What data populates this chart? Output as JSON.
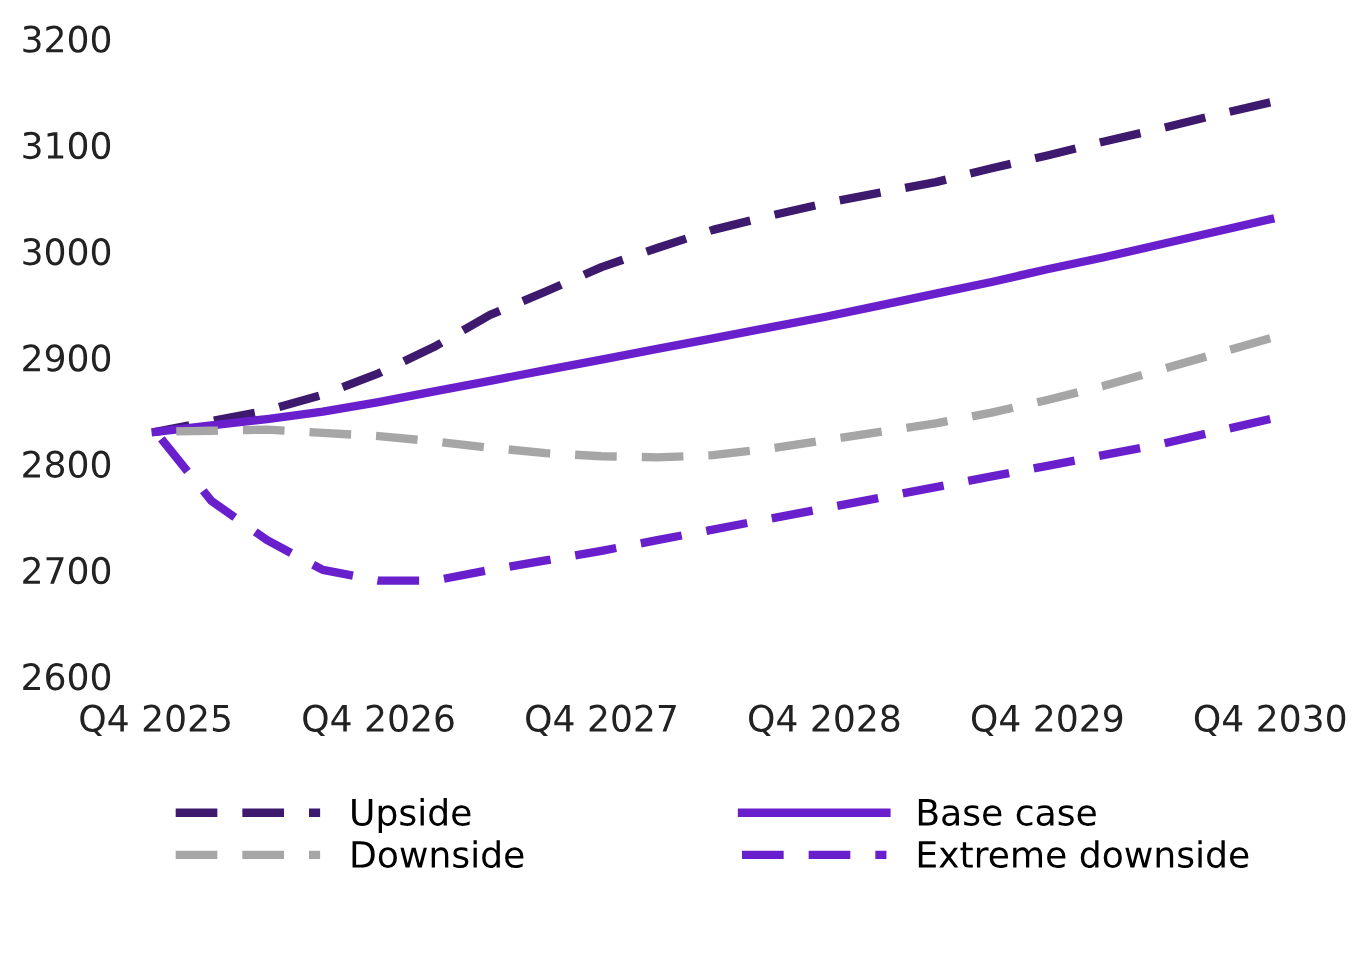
{
  "chart_data": {
    "type": "line",
    "categories": [
      "Q4 2025",
      null,
      null,
      null,
      "Q4 2026",
      null,
      null,
      null,
      "Q4 2027",
      null,
      null,
      null,
      "Q4 2028",
      null,
      null,
      null,
      "Q4 2029",
      null,
      null,
      null,
      "Q4 2030"
    ],
    "ylim": [
      2600,
      3200
    ],
    "yticks": [
      2600,
      2700,
      2800,
      2900,
      3000,
      3100,
      3200
    ],
    "grid": false,
    "legend": "bottom",
    "marker": "none",
    "series": [
      {
        "name": "Upside",
        "color": "#3d1a6e",
        "line_style": "dashed",
        "values": [
          2830,
          2840,
          2850,
          2865,
          2885,
          2910,
          2940,
          2962,
          2985,
          3003,
          3020,
          3033,
          3045,
          3055,
          3065,
          3078,
          3090,
          3103,
          3115,
          3128,
          3140
        ]
      },
      {
        "name": "Base case",
        "color": "#6a1fcc",
        "line_style": "solid",
        "values": [
          2830,
          2836,
          2842,
          2849,
          2858,
          2868,
          2878,
          2888,
          2898,
          2908,
          2918,
          2928,
          2938,
          2949,
          2960,
          2971,
          2983,
          2994,
          3006,
          3018,
          3030
        ]
      },
      {
        "name": "Downside",
        "color": "#a6a6a6",
        "line_style": "dashed",
        "values": [
          2830,
          2831,
          2832,
          2829,
          2826,
          2821,
          2815,
          2810,
          2807,
          2806,
          2808,
          2814,
          2822,
          2830,
          2838,
          2848,
          2860,
          2873,
          2888,
          2903,
          2918
        ]
      },
      {
        "name": "Extreme downside",
        "color": "#6a1fcc",
        "line_style": "dashed",
        "values": [
          2830,
          2765,
          2728,
          2700,
          2690,
          2690,
          2700,
          2709,
          2718,
          2728,
          2738,
          2748,
          2758,
          2768,
          2778,
          2788,
          2798,
          2808,
          2818,
          2830,
          2842
        ]
      }
    ]
  }
}
